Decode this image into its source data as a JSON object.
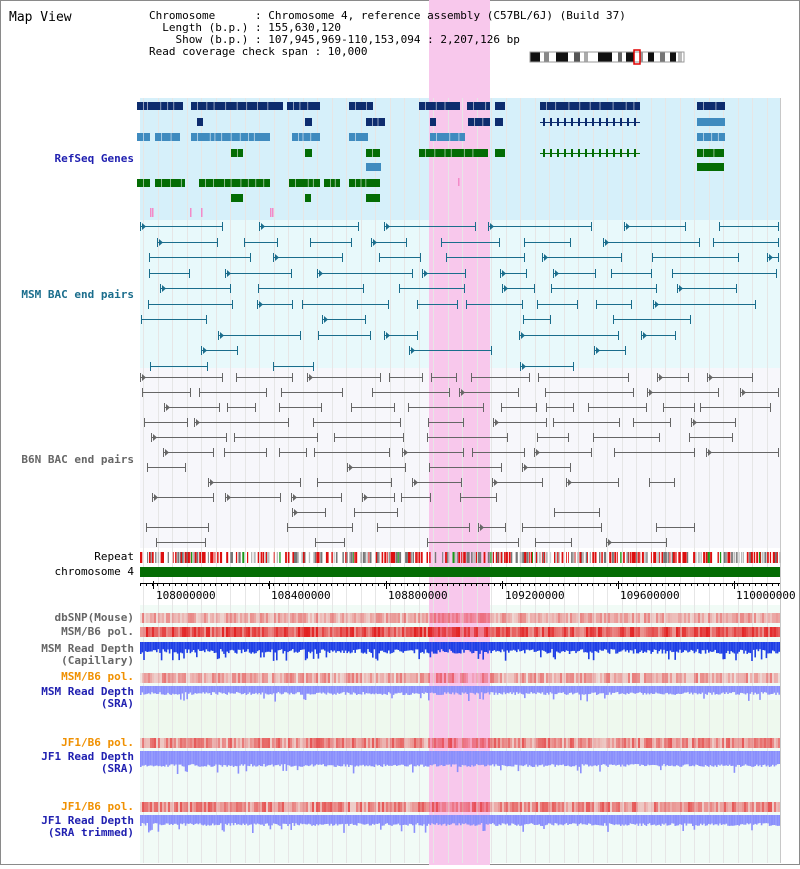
{
  "view_title": "Map View",
  "info": {
    "chromosome": "Chromosome      : Chromosome 4, reference assembly (C57BL/6J) (Build 37)",
    "length": "Length (b.p.) : 155,630,120",
    "show": "Show (b.p.) : 107,945,969-110,153,094 : 2,207,126 bp",
    "coverage": "Read coverage check span : 10,000"
  },
  "tracks": {
    "refseq": "RefSeq Genes",
    "msm_bac": "MSM BAC end pairs",
    "b6n_bac": "B6N BAC end pairs",
    "repeat": "Repeat",
    "chromosome": "chromosome 4",
    "dbsnp": "dbSNP(Mouse)",
    "msm_b6_pol": "MSM/B6 pol.",
    "msm_depth_cap_1": "MSM Read Depth",
    "msm_depth_cap_2": "(Capillary)",
    "msm_b6_pol_sra": "MSM/B6 pol.",
    "msm_depth_sra_1": "MSM Read Depth",
    "msm_depth_sra_2": "(SRA)",
    "jf1_pol": "JF1/B6 pol.",
    "jf1_depth_1": "JF1 Read Depth",
    "jf1_depth_2": "(SRA)",
    "jf1_pol_trim": "JF1/B6 pol.",
    "jf1_trim_1": "JF1 Read Depth",
    "jf1_trim_2": "(SRA trimmed)"
  },
  "axis_ticks": [
    "108000000",
    "108400000",
    "108800000",
    "109200000",
    "109600000",
    "110000000"
  ],
  "colors": {
    "refseq_dark": "#0d2c6e",
    "refseq_mid": "#3f8bbf",
    "refseq_green": "#046c04",
    "msm_bac": "#1a6d8c",
    "b6n_bac": "#666666",
    "highlight": "#f8c8ec",
    "depth_capillary": "#1f3fe6",
    "depth_sra": "#8a8ffc",
    "pol_red": "#e02020",
    "orange_label": "#f09000",
    "navy_label": "#1f1fb0"
  }
}
